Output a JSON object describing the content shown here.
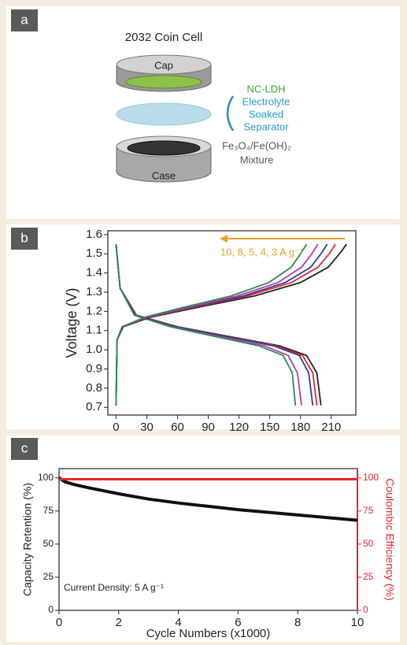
{
  "panel_labels": [
    "a",
    "b",
    "c"
  ],
  "diagram": {
    "title": "2032 Coin Cell",
    "cap": "Cap",
    "case": "Case",
    "labels": [
      "NC-LDH",
      "Electrolyte",
      "Soaked",
      "Separator",
      "Fe₃O₄/Fe(OH)₂",
      "Mixture"
    ]
  },
  "chart_data": [
    {
      "type": "line",
      "ylabel": "Voltage (V)",
      "annotation": "10, 8, 5, 4, 3 A g⁻¹",
      "annotation_color": "#f0a020",
      "xlim": [
        -8,
        234
      ],
      "xticks": [
        0,
        30,
        60,
        90,
        120,
        150,
        180,
        210
      ],
      "ylim": [
        0.66,
        1.62
      ],
      "yticks": [
        0.7,
        0.8,
        0.9,
        {
          "value": 1,
          "label": "1.0"
        },
        1.1,
        1.2,
        1.3,
        1.4,
        1.5,
        1.6
      ],
      "series": [
        {
          "color": "#222222",
          "x": [
            0,
            4,
            20,
            60,
            110,
            160,
            186,
            196,
            200
          ],
          "values": [
            1.55,
            1.32,
            1.18,
            1.12,
            1.07,
            1.02,
            0.97,
            0.88,
            0.71
          ]
        },
        {
          "color": "#e8262b",
          "x": [
            0,
            4,
            20,
            59,
            108,
            157,
            182,
            192,
            196
          ],
          "values": [
            1.55,
            1.32,
            1.18,
            1.12,
            1.07,
            1.02,
            0.97,
            0.88,
            0.71
          ]
        },
        {
          "color": "#2a3f9b",
          "x": [
            0,
            4,
            19,
            58,
            106,
            154,
            179,
            188,
            192
          ],
          "values": [
            1.55,
            1.32,
            1.18,
            1.12,
            1.07,
            1.02,
            0.97,
            0.88,
            0.71
          ]
        },
        {
          "color": "#b43ab4",
          "x": [
            0,
            4,
            18,
            54,
            100,
            145,
            168,
            177,
            181
          ],
          "values": [
            1.55,
            1.32,
            1.18,
            1.12,
            1.07,
            1.02,
            0.97,
            0.88,
            0.71
          ]
        },
        {
          "color": "#2e8b4a",
          "x": [
            0,
            4,
            18,
            53,
            96,
            140,
            163,
            172,
            175
          ],
          "values": [
            1.55,
            1.32,
            1.18,
            1.12,
            1.07,
            1.02,
            0.97,
            0.88,
            0.71
          ]
        },
        {
          "color": "#222222",
          "x": [
            0,
            1,
            7,
            34,
            79,
            135,
            180,
            207,
            218,
            225
          ],
          "values": [
            0.71,
            1.05,
            1.12,
            1.17,
            1.22,
            1.28,
            1.35,
            1.43,
            1.5,
            1.55
          ]
        },
        {
          "color": "#e8262b",
          "x": [
            0,
            1,
            6,
            32,
            75,
            128,
            171,
            197,
            208,
            214
          ],
          "values": [
            0.71,
            1.05,
            1.12,
            1.17,
            1.22,
            1.28,
            1.35,
            1.43,
            1.5,
            1.55
          ]
        },
        {
          "color": "#2a3f9b",
          "x": [
            0,
            1,
            6,
            31,
            72,
            124,
            165,
            190,
            200,
            206
          ],
          "values": [
            0.71,
            1.05,
            1.12,
            1.17,
            1.22,
            1.28,
            1.35,
            1.43,
            1.5,
            1.55
          ]
        },
        {
          "color": "#b43ab4",
          "x": [
            0,
            1,
            6,
            30,
            69,
            118,
            158,
            181,
            191,
            197
          ],
          "values": [
            0.71,
            1.05,
            1.12,
            1.17,
            1.22,
            1.28,
            1.35,
            1.43,
            1.5,
            1.55
          ]
        },
        {
          "color": "#2e8b4a",
          "x": [
            0,
            1,
            6,
            28,
            65,
            112,
            149,
            171,
            180,
            186
          ],
          "values": [
            0.71,
            1.05,
            1.12,
            1.17,
            1.22,
            1.28,
            1.35,
            1.43,
            1.5,
            1.55
          ]
        }
      ]
    },
    {
      "type": "line",
      "xlabel": "Cycle Numbers (x1000)",
      "ylabel": "Capacity Retention (%)",
      "y2label": "Coulombic Efficiency (%)",
      "annotation": "Current Density: 5 A g⁻¹",
      "xlim": [
        0,
        10
      ],
      "xticks": [
        0,
        2,
        4,
        6,
        8,
        10
      ],
      "ylim": [
        0,
        107
      ],
      "yticks": [
        0,
        25,
        50,
        75,
        100
      ],
      "y2lim": [
        0,
        107
      ],
      "y2ticks": [
        0,
        25,
        50,
        75,
        100
      ],
      "y2color": "#e8262b",
      "series": [
        {
          "color": "#111111",
          "x": [
            0,
            0.2,
            0.5,
            1,
            2,
            3,
            4,
            5,
            6,
            7,
            8,
            9,
            10
          ],
          "values": [
            100,
            97,
            95,
            92.5,
            88,
            84,
            81,
            78.5,
            76,
            74,
            72,
            70,
            68
          ]
        },
        {
          "color": "#e8262b",
          "axis": "y2",
          "x": [
            0,
            1,
            2,
            3,
            4,
            5,
            6,
            7,
            8,
            9,
            10
          ],
          "values": [
            99,
            99,
            99,
            99,
            99,
            99,
            99,
            99,
            99,
            99,
            99
          ]
        }
      ]
    }
  ]
}
